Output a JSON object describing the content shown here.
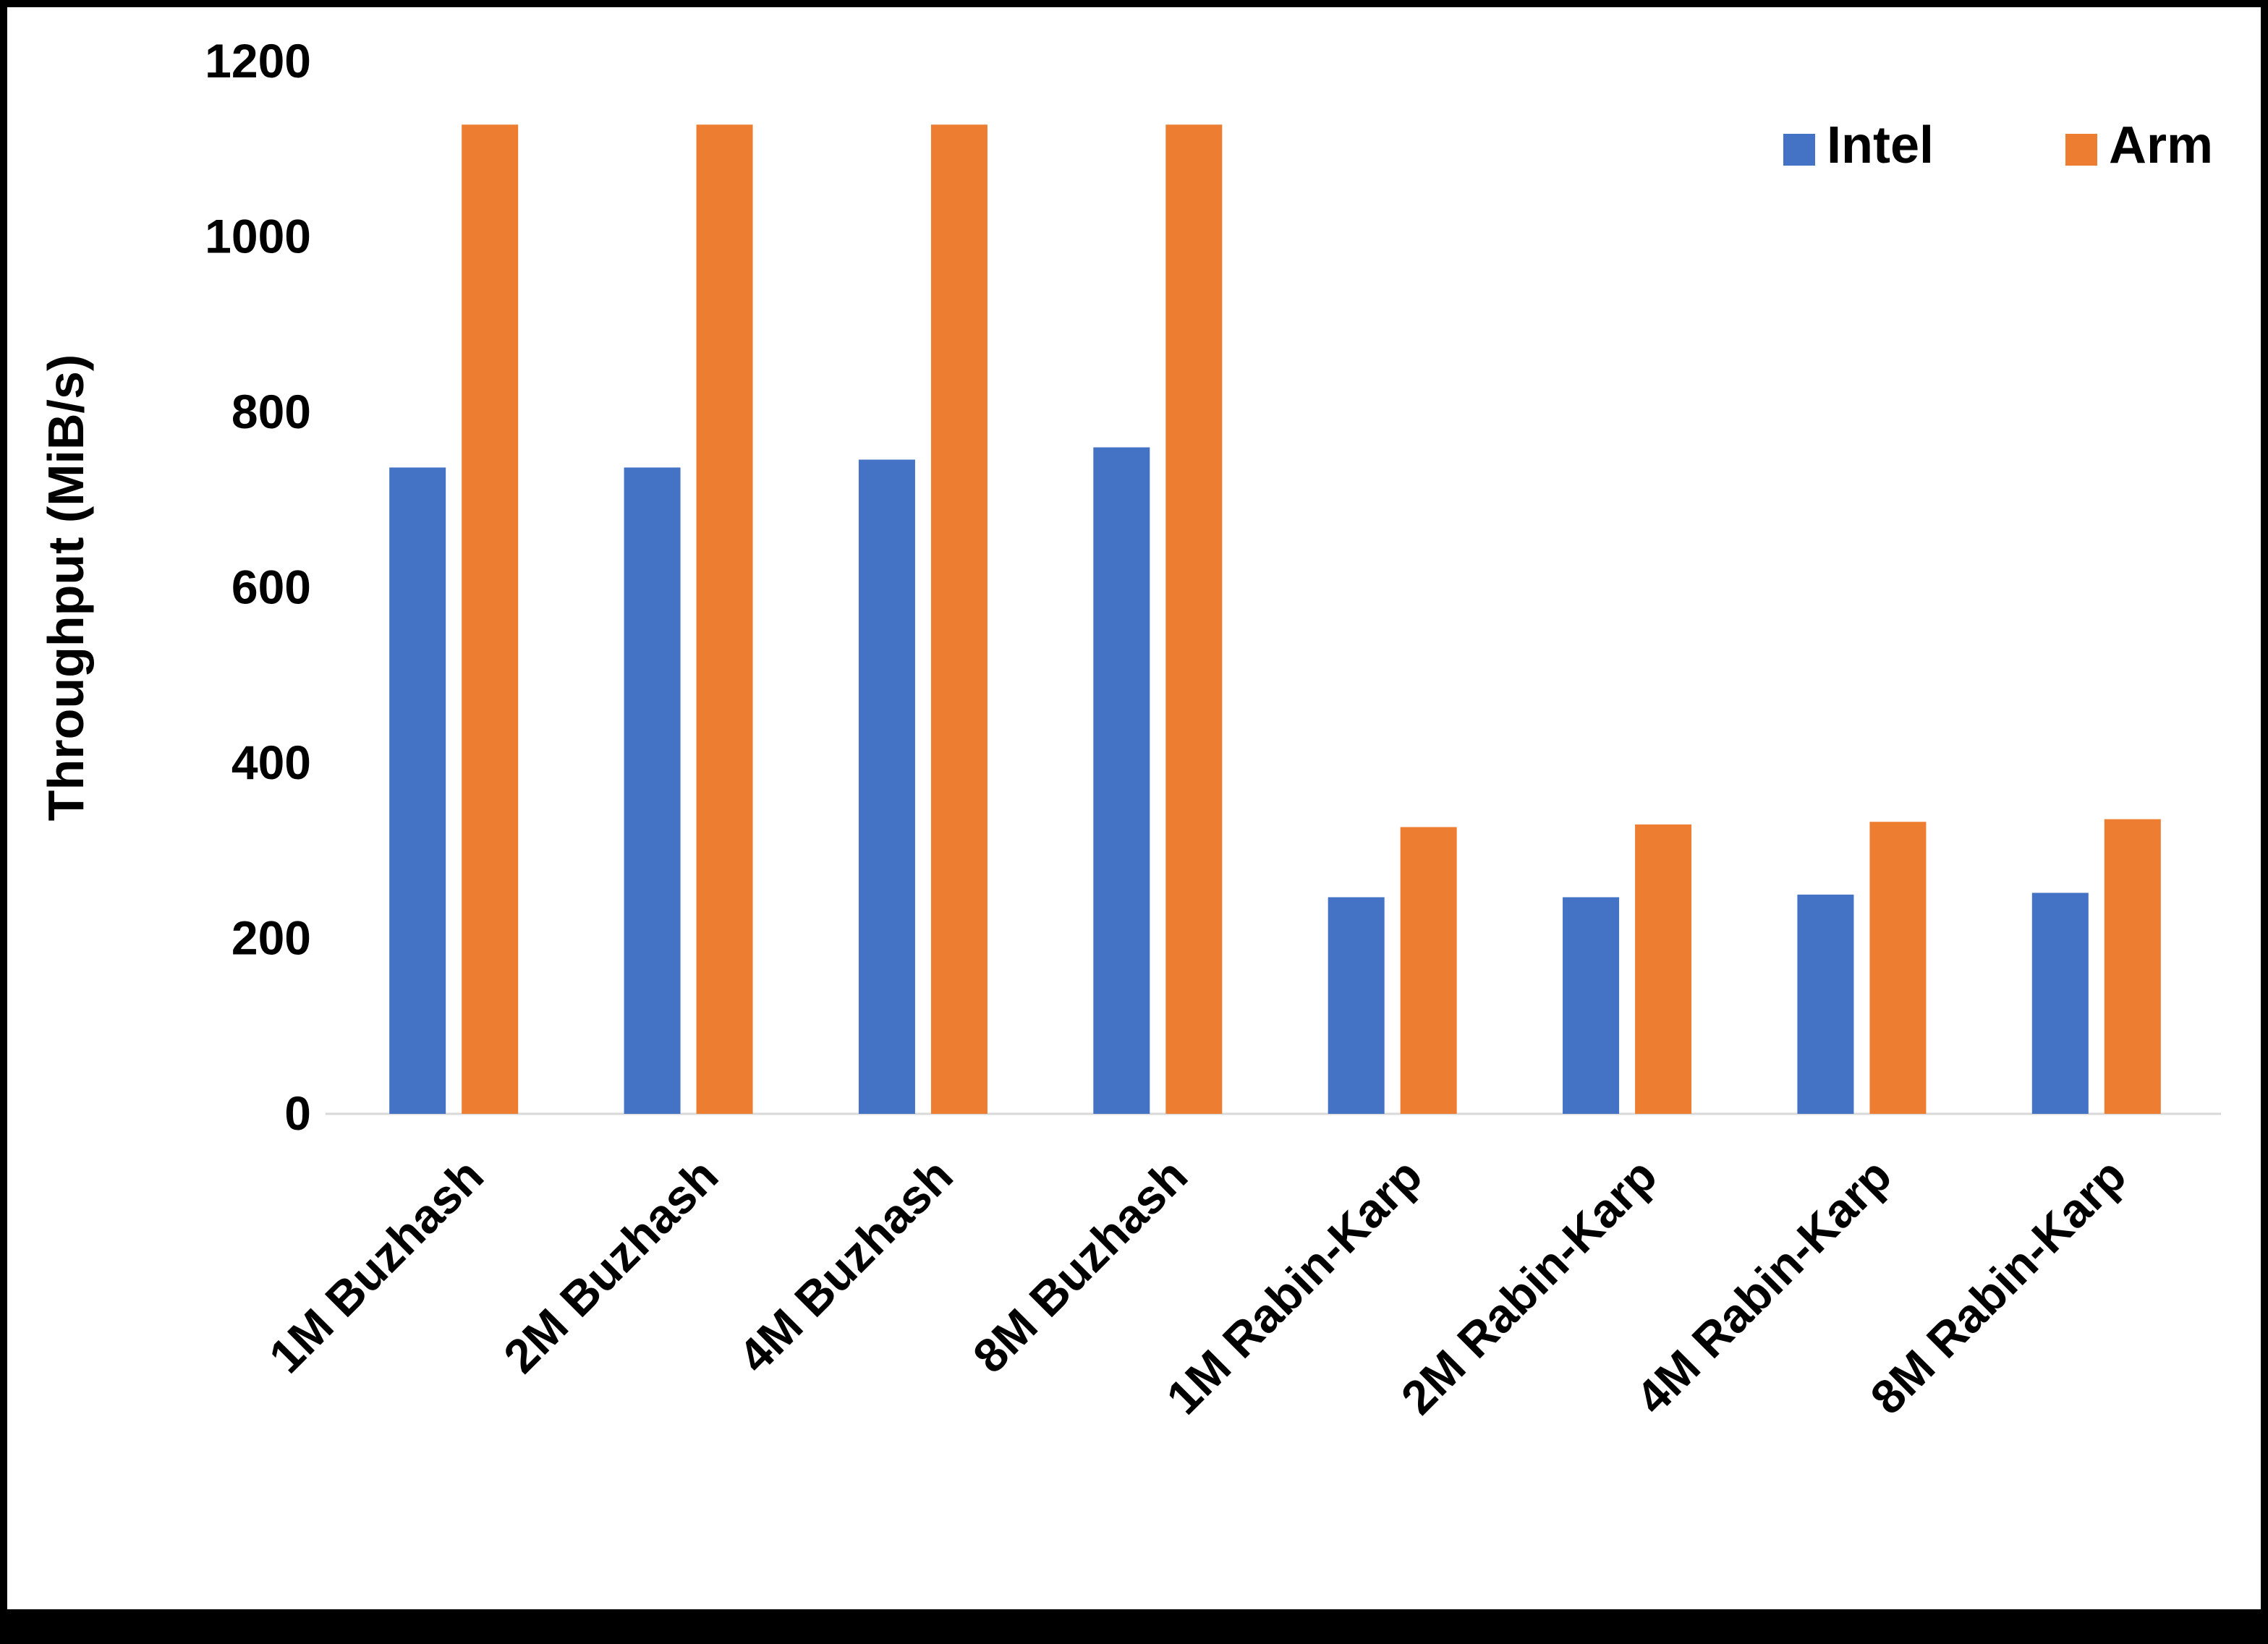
{
  "chart_data": {
    "type": "bar",
    "title": "",
    "ylabel": "Throughput (MiB/s)",
    "xlabel": "",
    "ylim": [
      0,
      1200
    ],
    "yticks": [
      0,
      200,
      400,
      600,
      800,
      1000,
      1200
    ],
    "grid": false,
    "legend_position": "top-right",
    "categories": [
      "1M Buzhash",
      "2M Buzhash",
      "4M Buzhash",
      "8M Buzhash",
      "1M Rabin-Karp",
      "2M Rabin-Karp",
      "4M Rabin-Karp",
      "8M Rabin-Karp"
    ],
    "series": [
      {
        "name": "Intel",
        "color": "#4472C4",
        "values": [
          737,
          737,
          746,
          760,
          247,
          247,
          250,
          252
        ]
      },
      {
        "name": "Arm",
        "color": "#ED7D31",
        "values": [
          1128,
          1128,
          1128,
          1128,
          327,
          330,
          333,
          336
        ]
      }
    ],
    "colors": {
      "axis_line": "#D9D9D9",
      "text": "#000000",
      "background": "#FFFFFF",
      "frame_border": "#000000"
    }
  }
}
